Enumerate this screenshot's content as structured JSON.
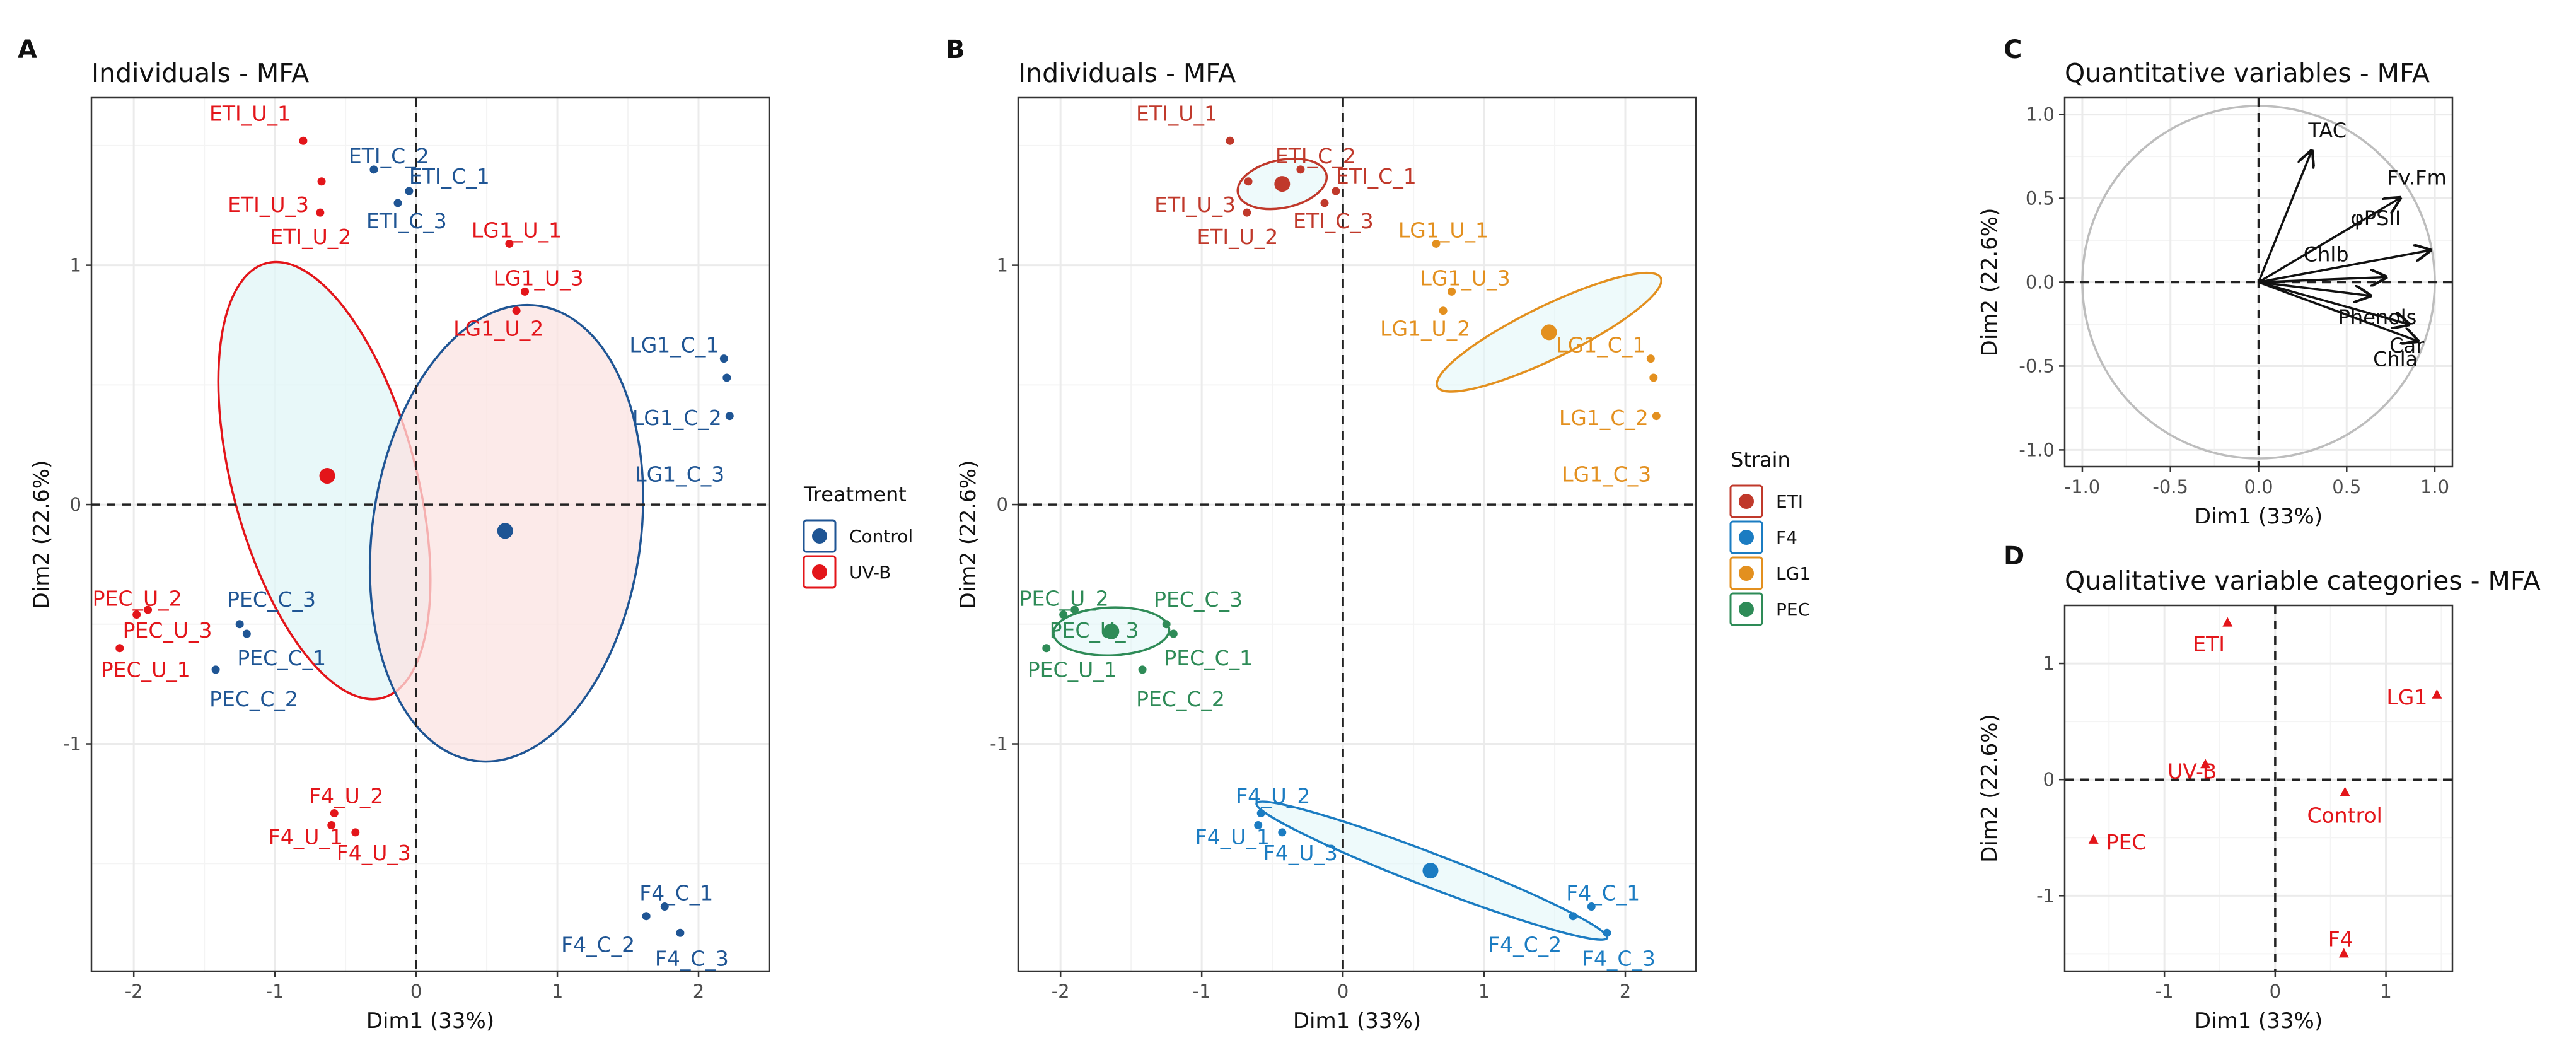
{
  "colors": {
    "control": "#1f5594",
    "uvb": "#e3151a",
    "eti": "#c0392b",
    "f4": "#1b7cc2",
    "lg1": "#e3901f",
    "pec": "#2e8b57",
    "grid": "#ebebeb",
    "frame": "#333333",
    "dashed": "#222222",
    "circle": "#bdbdbd",
    "fill_uvb": "#e0f5f7",
    "fill_control": "#fbe3e2"
  },
  "panel_letters": [
    "A",
    "B",
    "C",
    "D"
  ],
  "chart_data": [
    {
      "id": "A",
      "type": "scatter",
      "title": "Individuals - MFA",
      "xlabel": "Dim1 (33%)",
      "ylabel": "Dim2 (22.6%)",
      "xlim": [
        -2.3,
        2.5
      ],
      "ylim": [
        -1.95,
        1.7
      ],
      "xticks": [
        -2,
        -1,
        0,
        1,
        2
      ],
      "yticks": [
        -1,
        0,
        1
      ],
      "xticklabels": [
        "-2",
        "-1",
        "0",
        "1",
        "2"
      ],
      "yticklabels": [
        "-1",
        "0",
        "1"
      ],
      "legend": {
        "title": "Treatment",
        "position": "right",
        "entries": [
          {
            "label": "Control",
            "color": "control"
          },
          {
            "label": "UV-B",
            "color": "uvb"
          }
        ]
      },
      "points": [
        {
          "label": "ETI_U_1",
          "x": -0.8,
          "y": 1.52,
          "group": "uvb"
        },
        {
          "label": "ETI_U_3",
          "x": -0.67,
          "y": 1.35,
          "group": "uvb"
        },
        {
          "label": "ETI_U_2",
          "x": -0.68,
          "y": 1.22,
          "group": "uvb"
        },
        {
          "label": "ETI_C_2",
          "x": -0.3,
          "y": 1.4,
          "group": "control"
        },
        {
          "label": "ETI_C_1",
          "x": -0.05,
          "y": 1.31,
          "group": "control"
        },
        {
          "label": "ETI_C_3",
          "x": -0.13,
          "y": 1.26,
          "group": "control"
        },
        {
          "label": "LG1_U_1",
          "x": 0.66,
          "y": 1.09,
          "group": "uvb"
        },
        {
          "label": "LG1_U_3",
          "x": 0.77,
          "y": 0.89,
          "group": "uvb"
        },
        {
          "label": "LG1_U_2",
          "x": 0.71,
          "y": 0.81,
          "group": "uvb"
        },
        {
          "label": "LG1_C_1",
          "x": 2.18,
          "y": 0.61,
          "group": "control"
        },
        {
          "label": "LG1_C_2",
          "x": 2.2,
          "y": 0.53,
          "group": "control"
        },
        {
          "label": "LG1_C_3",
          "x": 2.22,
          "y": 0.37,
          "group": "control"
        },
        {
          "label": "PEC_U_2",
          "x": -1.98,
          "y": -0.46,
          "group": "uvb"
        },
        {
          "label": "PEC_U_3",
          "x": -1.9,
          "y": -0.44,
          "group": "uvb"
        },
        {
          "label": "PEC_U_1",
          "x": -2.1,
          "y": -0.6,
          "group": "uvb"
        },
        {
          "label": "PEC_C_3",
          "x": -1.25,
          "y": -0.5,
          "group": "control"
        },
        {
          "label": "PEC_C_1",
          "x": -1.2,
          "y": -0.54,
          "group": "control"
        },
        {
          "label": "PEC_C_2",
          "x": -1.42,
          "y": -0.69,
          "group": "control"
        },
        {
          "label": "F4_U_2",
          "x": -0.58,
          "y": -1.29,
          "group": "uvb"
        },
        {
          "label": "F4_U_1",
          "x": -0.6,
          "y": -1.34,
          "group": "uvb"
        },
        {
          "label": "F4_U_3",
          "x": -0.43,
          "y": -1.37,
          "group": "uvb"
        },
        {
          "label": "F4_C_1",
          "x": 1.76,
          "y": -1.68,
          "group": "control"
        },
        {
          "label": "F4_C_2",
          "x": 1.63,
          "y": -1.72,
          "group": "control"
        },
        {
          "label": "F4_C_3",
          "x": 1.87,
          "y": -1.79,
          "group": "control"
        }
      ],
      "centroids": [
        {
          "group": "uvb",
          "x": -0.63,
          "y": 0.12
        },
        {
          "group": "control",
          "x": 0.63,
          "y": -0.11
        }
      ],
      "ellipses": [
        {
          "group": "uvb",
          "cx": -0.65,
          "cy": 0.1,
          "rx": 0.65,
          "ry": 0.94,
          "angle": -15
        },
        {
          "group": "control",
          "cx": 0.64,
          "cy": -0.12,
          "rx": 0.95,
          "ry": 0.96,
          "angle": 8
        }
      ]
    },
    {
      "id": "B",
      "type": "scatter",
      "title": "Individuals - MFA",
      "xlabel": "Dim1 (33%)",
      "ylabel": "Dim2 (22.6%)",
      "xlim": [
        -2.3,
        2.5
      ],
      "ylim": [
        -1.95,
        1.7
      ],
      "xticks": [
        -2,
        -1,
        0,
        1,
        2
      ],
      "yticks": [
        -1,
        0,
        1
      ],
      "xticklabels": [
        "-2",
        "-1",
        "0",
        "1",
        "2"
      ],
      "yticklabels": [
        "-1",
        "0",
        "1"
      ],
      "legend": {
        "title": "Strain",
        "position": "right",
        "entries": [
          {
            "label": "ETI",
            "color": "eti"
          },
          {
            "label": "F4",
            "color": "f4"
          },
          {
            "label": "LG1",
            "color": "lg1"
          },
          {
            "label": "PEC",
            "color": "pec"
          }
        ]
      },
      "points": [
        {
          "label": "ETI_U_1",
          "x": -0.8,
          "y": 1.52,
          "group": "eti"
        },
        {
          "label": "ETI_U_3",
          "x": -0.67,
          "y": 1.35,
          "group": "eti"
        },
        {
          "label": "ETI_U_2",
          "x": -0.68,
          "y": 1.22,
          "group": "eti"
        },
        {
          "label": "ETI_C_2",
          "x": -0.3,
          "y": 1.4,
          "group": "eti"
        },
        {
          "label": "ETI_C_1",
          "x": -0.05,
          "y": 1.31,
          "group": "eti"
        },
        {
          "label": "ETI_C_3",
          "x": -0.13,
          "y": 1.26,
          "group": "eti"
        },
        {
          "label": "LG1_U_1",
          "x": 0.66,
          "y": 1.09,
          "group": "lg1"
        },
        {
          "label": "LG1_U_3",
          "x": 0.77,
          "y": 0.89,
          "group": "lg1"
        },
        {
          "label": "LG1_U_2",
          "x": 0.71,
          "y": 0.81,
          "group": "lg1"
        },
        {
          "label": "LG1_C_1",
          "x": 2.18,
          "y": 0.61,
          "group": "lg1"
        },
        {
          "label": "LG1_C_2",
          "x": 2.2,
          "y": 0.53,
          "group": "lg1"
        },
        {
          "label": "LG1_C_3",
          "x": 2.22,
          "y": 0.37,
          "group": "lg1"
        },
        {
          "label": "PEC_U_2",
          "x": -1.98,
          "y": -0.46,
          "group": "pec"
        },
        {
          "label": "PEC_U_3",
          "x": -1.9,
          "y": -0.44,
          "group": "pec"
        },
        {
          "label": "PEC_U_1",
          "x": -2.1,
          "y": -0.6,
          "group": "pec"
        },
        {
          "label": "PEC_C_3",
          "x": -1.25,
          "y": -0.5,
          "group": "pec"
        },
        {
          "label": "PEC_C_1",
          "x": -1.2,
          "y": -0.54,
          "group": "pec"
        },
        {
          "label": "PEC_C_2",
          "x": -1.42,
          "y": -0.69,
          "group": "pec"
        },
        {
          "label": "F4_U_2",
          "x": -0.58,
          "y": -1.29,
          "group": "f4"
        },
        {
          "label": "F4_U_1",
          "x": -0.6,
          "y": -1.34,
          "group": "f4"
        },
        {
          "label": "F4_U_3",
          "x": -0.43,
          "y": -1.37,
          "group": "f4"
        },
        {
          "label": "F4_C_1",
          "x": 1.76,
          "y": -1.68,
          "group": "f4"
        },
        {
          "label": "F4_C_2",
          "x": 1.63,
          "y": -1.72,
          "group": "f4"
        },
        {
          "label": "F4_C_3",
          "x": 1.87,
          "y": -1.79,
          "group": "f4"
        }
      ],
      "centroids": [
        {
          "group": "eti",
          "x": -0.43,
          "y": 1.34
        },
        {
          "group": "lg1",
          "x": 1.46,
          "y": 0.72
        },
        {
          "group": "pec",
          "x": -1.64,
          "y": -0.53
        },
        {
          "group": "f4",
          "x": 0.62,
          "y": -1.53
        }
      ],
      "ellipses": [
        {
          "group": "eti",
          "cx": -0.43,
          "cy": 1.34,
          "rx": 0.32,
          "ry": 0.1,
          "angle": -12
        },
        {
          "group": "lg1",
          "cx": 1.46,
          "cy": 0.72,
          "rx": 0.88,
          "ry": 0.11,
          "angle": -26
        },
        {
          "group": "pec",
          "cx": -1.64,
          "cy": -0.53,
          "rx": 0.41,
          "ry": 0.1,
          "angle": -2
        },
        {
          "group": "f4",
          "cx": 0.63,
          "cy": -1.53,
          "rx": 1.33,
          "ry": 0.07,
          "angle": 21
        }
      ]
    },
    {
      "id": "C",
      "type": "scatter",
      "subtype": "correlation-circle",
      "title": "Quantitative variables - MFA",
      "xlabel": "Dim1 (33%)",
      "ylabel": "Dim2 (22.6%)",
      "xlim": [
        -1.1,
        1.1
      ],
      "ylim": [
        -1.1,
        1.1
      ],
      "xticks": [
        -1,
        -0.5,
        0,
        0.5,
        1
      ],
      "yticks": [
        -1,
        -0.5,
        0,
        0.5,
        1
      ],
      "xticklabels": [
        "-1.0",
        "-0.5",
        "0.0",
        "0.5",
        "1.0"
      ],
      "yticklabels": [
        "-1.0",
        "-0.5",
        "0.0",
        "0.5",
        "1.0"
      ],
      "vectors": [
        {
          "label": "TAC",
          "x": 0.3,
          "y": 0.78
        },
        {
          "label": "Fv.Fm",
          "x": 0.8,
          "y": 0.5
        },
        {
          "label": "φPSII",
          "x": 0.97,
          "y": 0.19
        },
        {
          "label": "Chlb",
          "x": 0.72,
          "y": 0.03
        },
        {
          "label": "Phenols",
          "x": 0.63,
          "y": -0.08
        },
        {
          "label": "Car",
          "x": 0.85,
          "y": -0.25
        },
        {
          "label": "Chla",
          "x": 0.9,
          "y": -0.35
        }
      ]
    },
    {
      "id": "D",
      "type": "scatter",
      "title": "Qualitative variable categories - MFA",
      "xlabel": "Dim1 (33%)",
      "ylabel": "Dim2 (22.6%)",
      "xlim": [
        -1.9,
        1.6
      ],
      "ylim": [
        -1.65,
        1.5
      ],
      "xticks": [
        -1,
        0,
        1
      ],
      "yticks": [
        -1,
        0,
        1
      ],
      "xticklabels": [
        "-1",
        "0",
        "1"
      ],
      "yticklabels": [
        "-1",
        "0",
        "1"
      ],
      "categories": [
        {
          "label": "ETI",
          "x": -0.43,
          "y": 1.35
        },
        {
          "label": "LG1",
          "x": 1.46,
          "y": 0.73
        },
        {
          "label": "UV-B",
          "x": -0.63,
          "y": 0.13
        },
        {
          "label": "Control",
          "x": 0.63,
          "y": -0.11
        },
        {
          "label": "PEC",
          "x": -1.64,
          "y": -0.52
        },
        {
          "label": "F4",
          "x": 0.62,
          "y": -1.5
        }
      ]
    }
  ]
}
